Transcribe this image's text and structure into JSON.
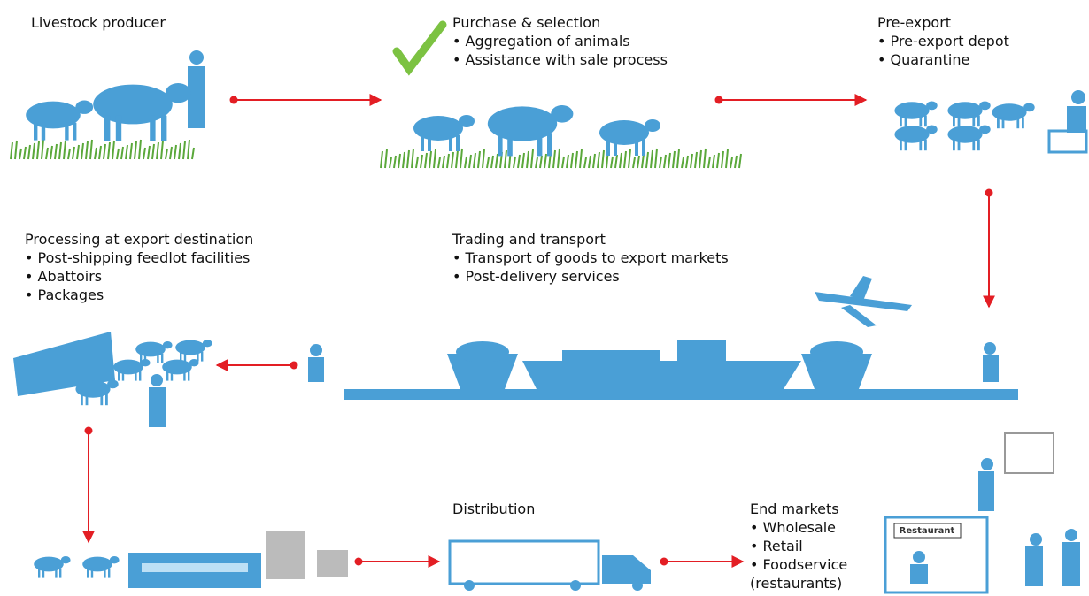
{
  "stages": [
    {
      "title": "Livestock producer",
      "items": []
    },
    {
      "title": "Purchase & selection",
      "items": [
        "Aggregation of animals",
        "Assistance with sale process"
      ]
    },
    {
      "title": "Pre-export",
      "items": [
        "Pre-export depot",
        "Quarantine"
      ]
    },
    {
      "title": "Trading and transport",
      "items": [
        "Transport of goods to export markets",
        "Post-delivery services"
      ]
    },
    {
      "title": "Processing at export destination",
      "items": [
        "Post-shipping feedlot facilities",
        "Abattoirs",
        "Packages"
      ]
    },
    {
      "title": "Distribution",
      "items": []
    },
    {
      "title": "End markets",
      "items": [
        "Wholesale",
        "Retail",
        "Foodservice (restaurants)"
      ]
    }
  ],
  "sign": "Restaurant"
}
